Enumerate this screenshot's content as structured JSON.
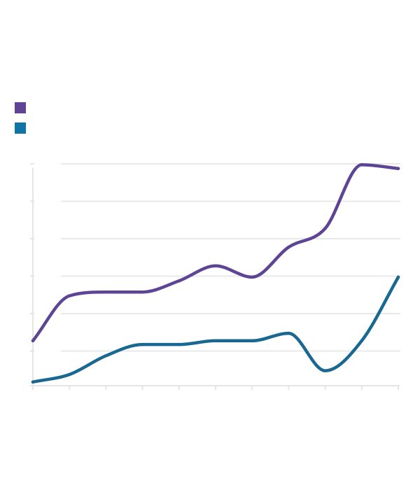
{
  "chart_data": {
    "type": "line",
    "smooth": true,
    "grid": true,
    "legend_placement": "top-left",
    "x": [
      0,
      1,
      2,
      3,
      4,
      5,
      6,
      7,
      8,
      9,
      10
    ],
    "ylim": [
      0,
      6
    ],
    "series": [
      {
        "color": "#5e4495",
        "values": [
          1.2,
          2.4,
          2.5,
          2.5,
          2.8,
          3.2,
          2.9,
          3.7,
          4.2,
          5.9,
          5.8
        ]
      },
      {
        "color": "#196892",
        "values": [
          0.1,
          0.3,
          0.8,
          1.1,
          1.1,
          1.2,
          1.2,
          1.4,
          0.4,
          1.2,
          2.9
        ]
      }
    ]
  },
  "colors": {
    "grid": "#e9e9e9",
    "axis": "#e5e5e5",
    "legend_swatches": [
      "#5e4495",
      "#0e75a5"
    ]
  }
}
